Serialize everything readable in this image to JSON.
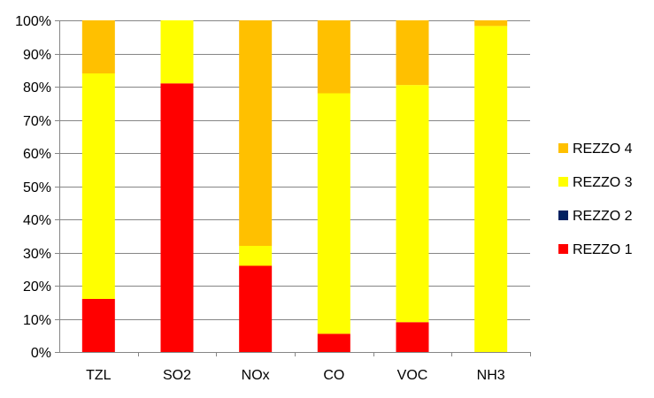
{
  "chart_data": {
    "type": "bar",
    "stacked": true,
    "categories": [
      "TZL",
      "SO2",
      "NOx",
      "CO",
      "VOC",
      "NH3"
    ],
    "series": [
      {
        "name": "REZZO 1",
        "color": "#ff0000",
        "values": [
          16,
          81,
          26,
          5.5,
          9,
          0
        ]
      },
      {
        "name": "REZZO 2",
        "color": "#002060",
        "values": [
          0,
          0,
          0,
          0,
          0,
          0
        ]
      },
      {
        "name": "REZZO 3",
        "color": "#ffff00",
        "values": [
          68,
          19,
          6,
          72.5,
          71.5,
          98.3
        ]
      },
      {
        "name": "REZZO 4",
        "color": "#ffc000",
        "values": [
          16,
          0,
          68,
          22,
          19.5,
          1.7
        ]
      }
    ],
    "ylim": [
      0,
      100
    ],
    "ytick_labels": [
      "0%",
      "10%",
      "20%",
      "30%",
      "40%",
      "50%",
      "60%",
      "70%",
      "80%",
      "90%",
      "100%"
    ],
    "grid": true,
    "legend_position": "right",
    "legend_order": [
      "REZZO 4",
      "REZZO 3",
      "REZZO 2",
      "REZZO 1"
    ]
  }
}
